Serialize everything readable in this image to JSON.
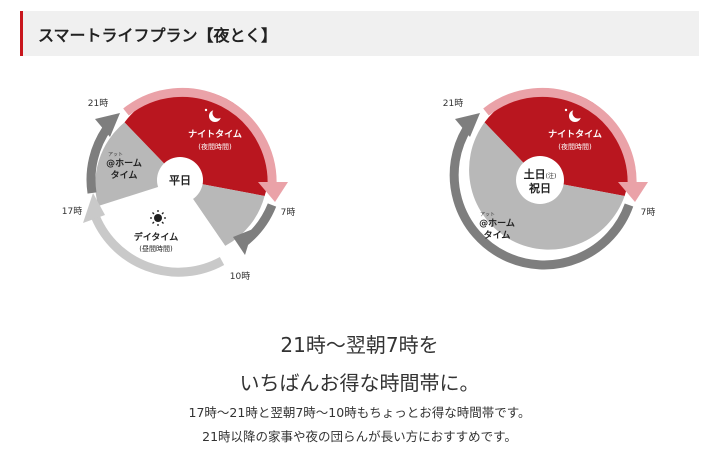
{
  "header": {
    "title": "スマートライフプラン【夜とく】"
  },
  "diagram_weekday": {
    "center_label": "平日",
    "time_21": "21時",
    "time_7": "7時",
    "time_10": "10時",
    "time_17": "17時",
    "night_title": "ナイトタイム",
    "night_sub": "(夜間時間)",
    "day_title": "デイタイム",
    "day_sub": "(昼間時間)",
    "home_ruby": "アット",
    "home_title1": "@ホーム",
    "home_title2": "タイム",
    "icons": [
      "moon-stars-icon",
      "sun-icon"
    ]
  },
  "diagram_holiday": {
    "center_line1": "土日",
    "center_note": "(注)",
    "center_line2": "祝日",
    "time_21": "21時",
    "time_7": "7時",
    "night_title": "ナイトタイム",
    "night_sub": "(夜間時間)",
    "home_ruby": "アット",
    "home_title1": "@ホーム",
    "home_title2": "タイム"
  },
  "captions": {
    "line1": "21時～翌朝7時を",
    "line2": "いちばんお得な時間帯に。",
    "line3": "17時～21時と翌朝7時～10時もちょっとお得な時間帯です。",
    "line4": "21時以降の家事や夜の団らんが長い方におすすめです。"
  },
  "colors": {
    "accent": "#c8161d",
    "night_red": "#b9161f",
    "night_arrow": "#eaa2a8",
    "home_gray": "#b8b8b8",
    "dark_arrow": "#7e7e7e",
    "light_arrow": "#c9c9c9"
  }
}
